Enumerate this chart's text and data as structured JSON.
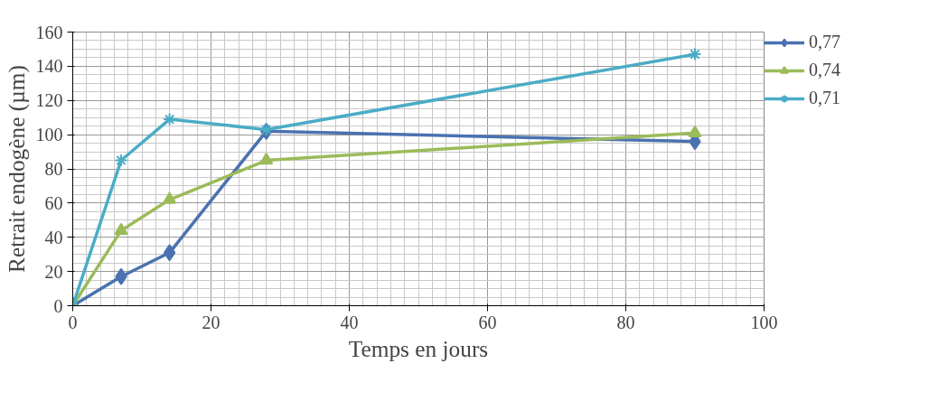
{
  "chart_data": {
    "type": "line",
    "xlabel": "Temps en jours",
    "ylabel": "Retrait endogène (µm)",
    "xlim": [
      0,
      100
    ],
    "xticks": [
      0,
      20,
      40,
      60,
      80,
      100
    ],
    "ylim": [
      0,
      160
    ],
    "yticks": [
      0,
      20,
      40,
      60,
      80,
      100,
      120,
      140,
      160
    ],
    "grid": true,
    "legend": "right",
    "line_style": "solid",
    "series": [
      {
        "name": "0,77",
        "color": "#4a72b0",
        "marker": "diamond",
        "x": [
          0,
          7,
          14,
          28,
          90
        ],
        "values": [
          0,
          17,
          31,
          102,
          96
        ]
      },
      {
        "name": "0,74",
        "color": "#9bbb59",
        "marker": "triangle",
        "x": [
          0,
          7,
          14,
          28,
          90
        ],
        "values": [
          0,
          44,
          62,
          85,
          101
        ]
      },
      {
        "name": "0,71",
        "color": "#4bacc6",
        "marker": "cross",
        "x": [
          0,
          7,
          14,
          28,
          90
        ],
        "values": [
          0,
          85,
          109,
          103,
          147
        ]
      }
    ]
  }
}
